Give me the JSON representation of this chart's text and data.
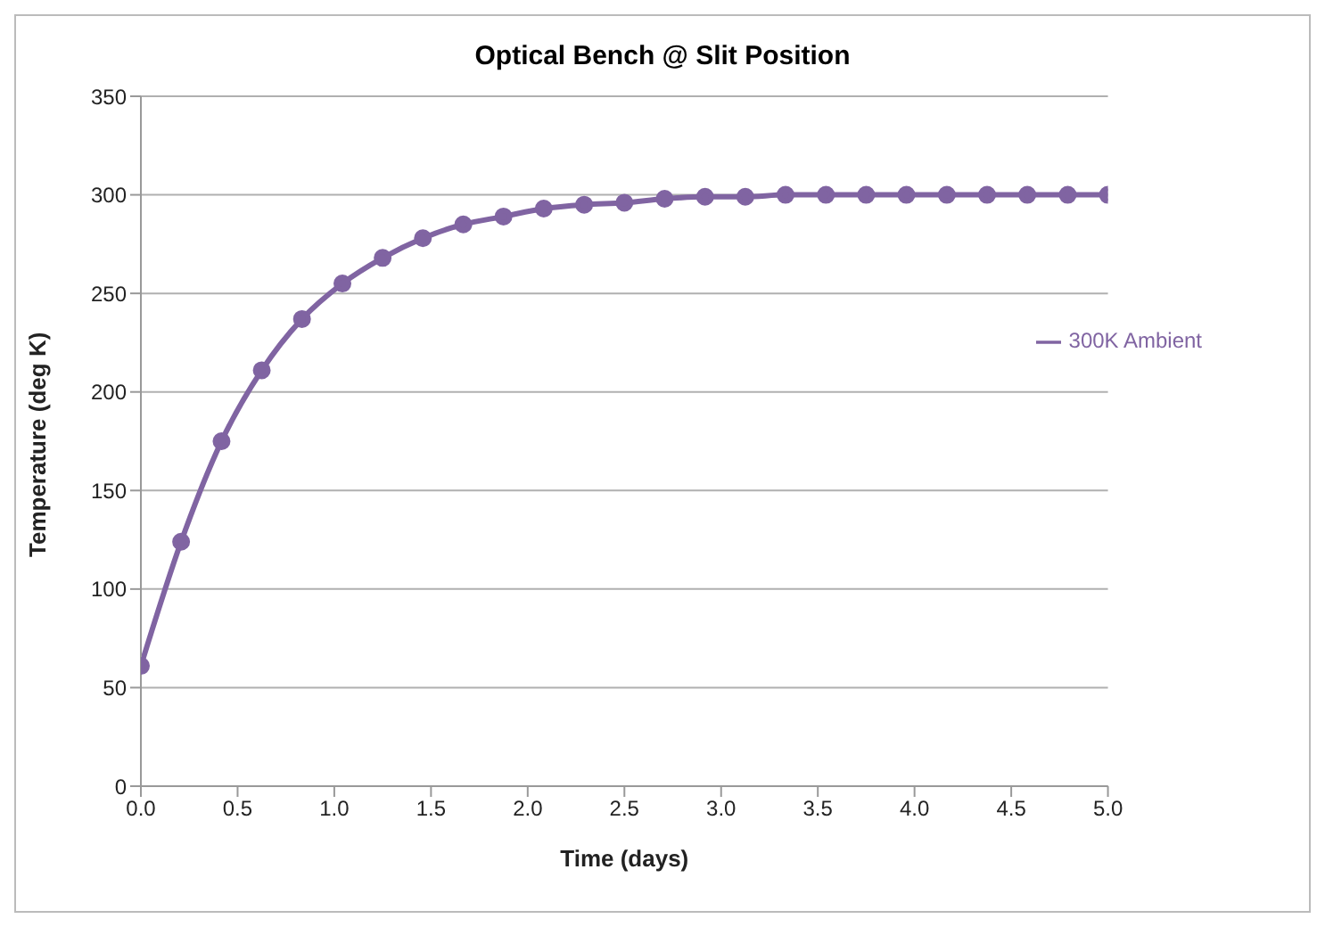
{
  "chart_data": {
    "type": "line",
    "title": "Optical Bench @ Slit Position",
    "xlabel": "Time (days)",
    "ylabel": "Temperature (deg K)",
    "x": [
      0,
      0.208,
      0.417,
      0.625,
      0.833,
      1.042,
      1.25,
      1.458,
      1.667,
      1.875,
      2.083,
      2.292,
      2.5,
      2.708,
      2.917,
      3.125,
      3.333,
      3.542,
      3.75,
      3.958,
      4.167,
      4.375,
      4.583,
      4.792,
      5
    ],
    "series": [
      {
        "name": "300K Ambient",
        "color": "#8064a2",
        "values": [
          61,
          124,
          175,
          211,
          237,
          255,
          268,
          278,
          285,
          289,
          293,
          295,
          296,
          298,
          299,
          299,
          300,
          300,
          300,
          300,
          300,
          300,
          300,
          300,
          300
        ]
      }
    ],
    "xlim": [
      0,
      5
    ],
    "xticks": [
      {
        "value": 0,
        "label": "0.0"
      },
      {
        "value": 0.5,
        "label": "0.5"
      },
      {
        "value": 1,
        "label": "1.0"
      },
      {
        "value": 1.5,
        "label": "1.5"
      },
      {
        "value": 2,
        "label": "2.0"
      },
      {
        "value": 2.5,
        "label": "2.5"
      },
      {
        "value": 3,
        "label": "3.0"
      },
      {
        "value": 3.5,
        "label": "3.5"
      },
      {
        "value": 4,
        "label": "4.0"
      },
      {
        "value": 4.5,
        "label": "4.5"
      },
      {
        "value": 5,
        "label": "5.0"
      }
    ],
    "ylim": [
      0,
      350
    ],
    "yticks": [
      0,
      50,
      100,
      150,
      200,
      250,
      300,
      350
    ],
    "grid": "y",
    "legend": "right",
    "marker": "circle",
    "line_style": "solid"
  }
}
